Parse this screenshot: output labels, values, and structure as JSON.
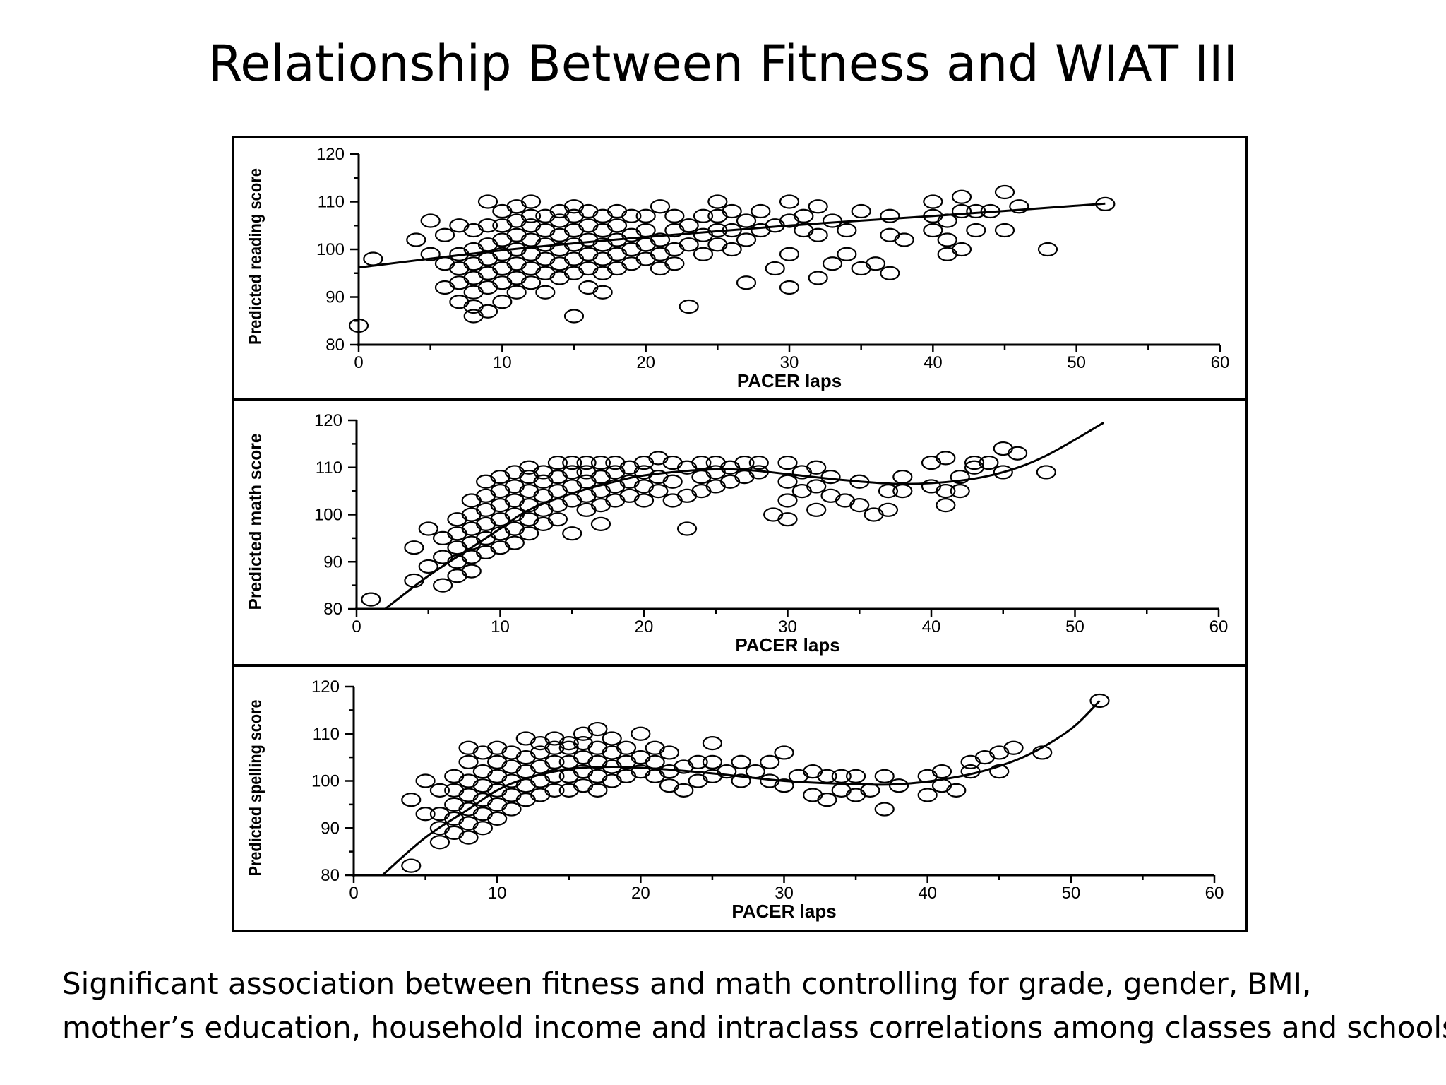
{
  "slide": {
    "title": "Relationship Between Fitness and WIAT III",
    "caption_lines": [
      "Significant association between fitness and math controlling for grade, gender, BMI,",
      "mother’s education, household income and intraclass correlations among classes and schools"
    ]
  },
  "chart_data": [
    {
      "type": "scatter",
      "xlabel": "PACER laps",
      "ylabel": "Predicted reading score",
      "xlim": [
        0,
        60
      ],
      "ylim": [
        80,
        120
      ],
      "xticks": [
        0,
        10,
        20,
        30,
        40,
        50,
        60
      ],
      "yticks": [
        80,
        90,
        100,
        110,
        120
      ],
      "grid": false,
      "fit_curve": {
        "x": [
          0,
          10,
          20,
          30,
          40,
          52
        ],
        "y": [
          96.2,
          99.8,
          102.6,
          105,
          107,
          109.6
        ]
      },
      "points": {
        "x": [
          0,
          1,
          4,
          5,
          5,
          6,
          6,
          6,
          7,
          7,
          7,
          7,
          7,
          8,
          8,
          8,
          8,
          8,
          8,
          8,
          9,
          9,
          9,
          9,
          9,
          9,
          9,
          10,
          10,
          10,
          10,
          10,
          10,
          10,
          11,
          11,
          11,
          11,
          11,
          11,
          11,
          12,
          12,
          12,
          12,
          12,
          12,
          12,
          13,
          13,
          13,
          13,
          13,
          13,
          14,
          14,
          14,
          14,
          14,
          14,
          15,
          15,
          15,
          15,
          15,
          15,
          15,
          16,
          16,
          16,
          16,
          16,
          16,
          17,
          17,
          17,
          17,
          17,
          17,
          18,
          18,
          18,
          18,
          18,
          19,
          19,
          19,
          19,
          20,
          20,
          20,
          20,
          21,
          21,
          21,
          21,
          22,
          22,
          22,
          22,
          23,
          23,
          23,
          24,
          24,
          24,
          25,
          25,
          25,
          25,
          26,
          26,
          26,
          27,
          27,
          27,
          28,
          28,
          29,
          29,
          30,
          30,
          30,
          30,
          31,
          31,
          32,
          32,
          32,
          33,
          33,
          34,
          34,
          35,
          35,
          36,
          37,
          37,
          37,
          38,
          40,
          40,
          40,
          41,
          41,
          41,
          42,
          42,
          42,
          43,
          43,
          44,
          45,
          45,
          46,
          48,
          52
        ],
        "y": [
          84,
          98,
          102,
          99,
          106,
          92,
          97,
          103,
          89,
          93,
          96,
          99,
          105,
          86,
          88,
          91,
          94,
          97,
          100,
          104,
          87,
          92,
          95,
          98,
          101,
          105,
          110,
          89,
          93,
          96,
          99,
          102,
          105,
          108,
          91,
          94,
          97,
          100,
          103,
          106,
          109,
          93,
          96,
          99,
          102,
          105,
          107,
          110,
          91,
          95,
          98,
          101,
          104,
          107,
          94,
          97,
          100,
          103,
          106,
          108,
          86,
          95,
          98,
          101,
          104,
          107,
          109,
          92,
          96,
          99,
          102,
          105,
          108,
          91,
          95,
          98,
          101,
          104,
          107,
          96,
          99,
          102,
          105,
          108,
          97,
          100,
          103,
          107,
          98,
          101,
          104,
          107,
          96,
          99,
          102,
          109,
          97,
          100,
          104,
          107,
          88,
          101,
          105,
          99,
          103,
          107,
          101,
          104,
          107,
          110,
          100,
          104,
          108,
          93,
          102,
          106,
          104,
          108,
          96,
          105,
          92,
          99,
          106,
          110,
          104,
          107,
          94,
          103,
          109,
          97,
          106,
          99,
          104,
          96,
          108,
          97,
          95,
          103,
          107,
          102,
          104,
          107,
          110,
          99,
          102,
          106,
          100,
          108,
          111,
          104,
          108,
          108,
          104,
          112,
          109,
          100,
          109.5
        ]
      }
    },
    {
      "type": "scatter",
      "xlabel": "PACER laps",
      "ylabel": "Predicted math score",
      "xlim": [
        0,
        60
      ],
      "ylim": [
        80,
        120
      ],
      "xticks": [
        0,
        10,
        20,
        30,
        40,
        50,
        60
      ],
      "yticks": [
        80,
        90,
        100,
        110,
        120
      ],
      "grid": false,
      "fit_curve": {
        "x": [
          2,
          5,
          8,
          10,
          12,
          15,
          18,
          20,
          24,
          27,
          30,
          34,
          38,
          42,
          45,
          48,
          52
        ],
        "y": [
          80,
          87,
          93,
          97,
          101,
          104.5,
          107,
          108.3,
          109.5,
          109.5,
          108.6,
          107.3,
          106.5,
          107.2,
          109,
          112.5,
          119.5
        ]
      },
      "points": {
        "x": [
          1,
          4,
          4,
          5,
          5,
          6,
          6,
          6,
          7,
          7,
          7,
          7,
          7,
          8,
          8,
          8,
          8,
          8,
          8,
          9,
          9,
          9,
          9,
          9,
          9,
          10,
          10,
          10,
          10,
          10,
          10,
          11,
          11,
          11,
          11,
          11,
          11,
          12,
          12,
          12,
          12,
          12,
          12,
          13,
          13,
          13,
          13,
          13,
          14,
          14,
          14,
          14,
          14,
          15,
          15,
          15,
          15,
          15,
          16,
          16,
          16,
          16,
          16,
          17,
          17,
          17,
          17,
          17,
          18,
          18,
          18,
          18,
          19,
          19,
          19,
          20,
          20,
          20,
          20,
          21,
          21,
          21,
          22,
          22,
          22,
          23,
          23,
          23,
          24,
          24,
          24,
          25,
          25,
          25,
          26,
          26,
          27,
          27,
          28,
          28,
          29,
          30,
          30,
          30,
          30,
          31,
          31,
          32,
          32,
          32,
          33,
          33,
          34,
          35,
          35,
          36,
          37,
          37,
          38,
          38,
          40,
          40,
          41,
          41,
          41,
          42,
          42,
          43,
          43,
          44,
          45,
          45,
          46,
          48
        ],
        "y": [
          82,
          86,
          93,
          89,
          97,
          85,
          91,
          95,
          87,
          90,
          93,
          96,
          99,
          88,
          91,
          94,
          97,
          100,
          103,
          92,
          95,
          98,
          101,
          104,
          107,
          93,
          96,
          99,
          102,
          105,
          108,
          94,
          97,
          100,
          103,
          106,
          109,
          96,
          99,
          102,
          105,
          108,
          110,
          98,
          101,
          104,
          107,
          109,
          99,
          102,
          105,
          108,
          111,
          96,
          103,
          106,
          109,
          111,
          101,
          104,
          107,
          109,
          111,
          98,
          102,
          105,
          108,
          111,
          103,
          106,
          109,
          111,
          104,
          107,
          110,
          103,
          106,
          109,
          111,
          105,
          108,
          112,
          103,
          107,
          111,
          97,
          104,
          110,
          105,
          108,
          111,
          106,
          109,
          111,
          107,
          110,
          108,
          111,
          109,
          111,
          100,
          99,
          103,
          107,
          111,
          105,
          109,
          101,
          106,
          110,
          104,
          108,
          103,
          102,
          107,
          100,
          101,
          105,
          105,
          108,
          106,
          111,
          102,
          105,
          112,
          105,
          108,
          110,
          111,
          111,
          109,
          114,
          113,
          109
        ]
      }
    },
    {
      "type": "scatter",
      "xlabel": "PACER laps",
      "ylabel": "Predicted spelling score",
      "xlim": [
        0,
        60
      ],
      "ylim": [
        80,
        120
      ],
      "xticks": [
        0,
        10,
        20,
        30,
        40,
        50,
        60
      ],
      "yticks": [
        80,
        90,
        100,
        110,
        120
      ],
      "grid": false,
      "fit_curve": {
        "x": [
          2,
          5,
          8,
          10,
          12,
          15,
          18,
          21,
          25,
          30,
          35,
          38,
          41,
          44,
          47,
          50,
          52
        ],
        "y": [
          80,
          88,
          94,
          98,
          100.5,
          102.5,
          103,
          102.6,
          101.6,
          100,
          99.3,
          99.3,
          100.3,
          102.2,
          105.5,
          111,
          117
        ]
      },
      "points": {
        "x": [
          4,
          4,
          5,
          5,
          6,
          6,
          6,
          6,
          7,
          7,
          7,
          7,
          7,
          8,
          8,
          8,
          8,
          8,
          8,
          8,
          9,
          9,
          9,
          9,
          9,
          9,
          10,
          10,
          10,
          10,
          10,
          10,
          11,
          11,
          11,
          11,
          11,
          12,
          12,
          12,
          12,
          12,
          13,
          13,
          13,
          13,
          13,
          14,
          14,
          14,
          14,
          14,
          15,
          15,
          15,
          15,
          15,
          16,
          16,
          16,
          16,
          16,
          17,
          17,
          17,
          17,
          17,
          18,
          18,
          18,
          18,
          19,
          19,
          19,
          20,
          20,
          20,
          21,
          21,
          21,
          22,
          22,
          22,
          23,
          23,
          24,
          24,
          25,
          25,
          25,
          26,
          27,
          27,
          28,
          29,
          29,
          30,
          30,
          31,
          32,
          32,
          33,
          33,
          34,
          34,
          35,
          35,
          36,
          37,
          37,
          38,
          40,
          40,
          41,
          41,
          42,
          43,
          43,
          44,
          45,
          45,
          46,
          48,
          52
        ],
        "y": [
          82,
          96,
          93,
          100,
          87,
          90,
          93,
          98,
          89,
          92,
          95,
          98,
          101,
          88,
          91,
          94,
          97,
          100,
          104,
          107,
          90,
          93,
          96,
          99,
          102,
          106,
          92,
          95,
          98,
          101,
          104,
          107,
          94,
          97,
          100,
          103,
          106,
          96,
          99,
          102,
          105,
          109,
          97,
          100,
          103,
          106,
          108,
          98,
          101,
          104,
          107,
          109,
          98,
          101,
          104,
          107,
          108,
          99,
          102,
          105,
          108,
          110,
          98,
          101,
          104,
          107,
          111,
          100,
          103,
          106,
          109,
          101,
          104,
          107,
          102,
          105,
          110,
          101,
          104,
          107,
          99,
          102,
          106,
          98,
          103,
          100,
          104,
          101,
          104,
          108,
          102,
          100,
          104,
          102,
          100,
          104,
          99,
          106,
          101,
          97,
          102,
          96,
          101,
          98,
          101,
          97,
          101,
          98,
          94,
          101,
          99,
          97,
          101,
          99,
          102,
          98,
          102,
          104,
          105,
          102,
          106,
          107,
          106,
          117
        ]
      }
    }
  ]
}
